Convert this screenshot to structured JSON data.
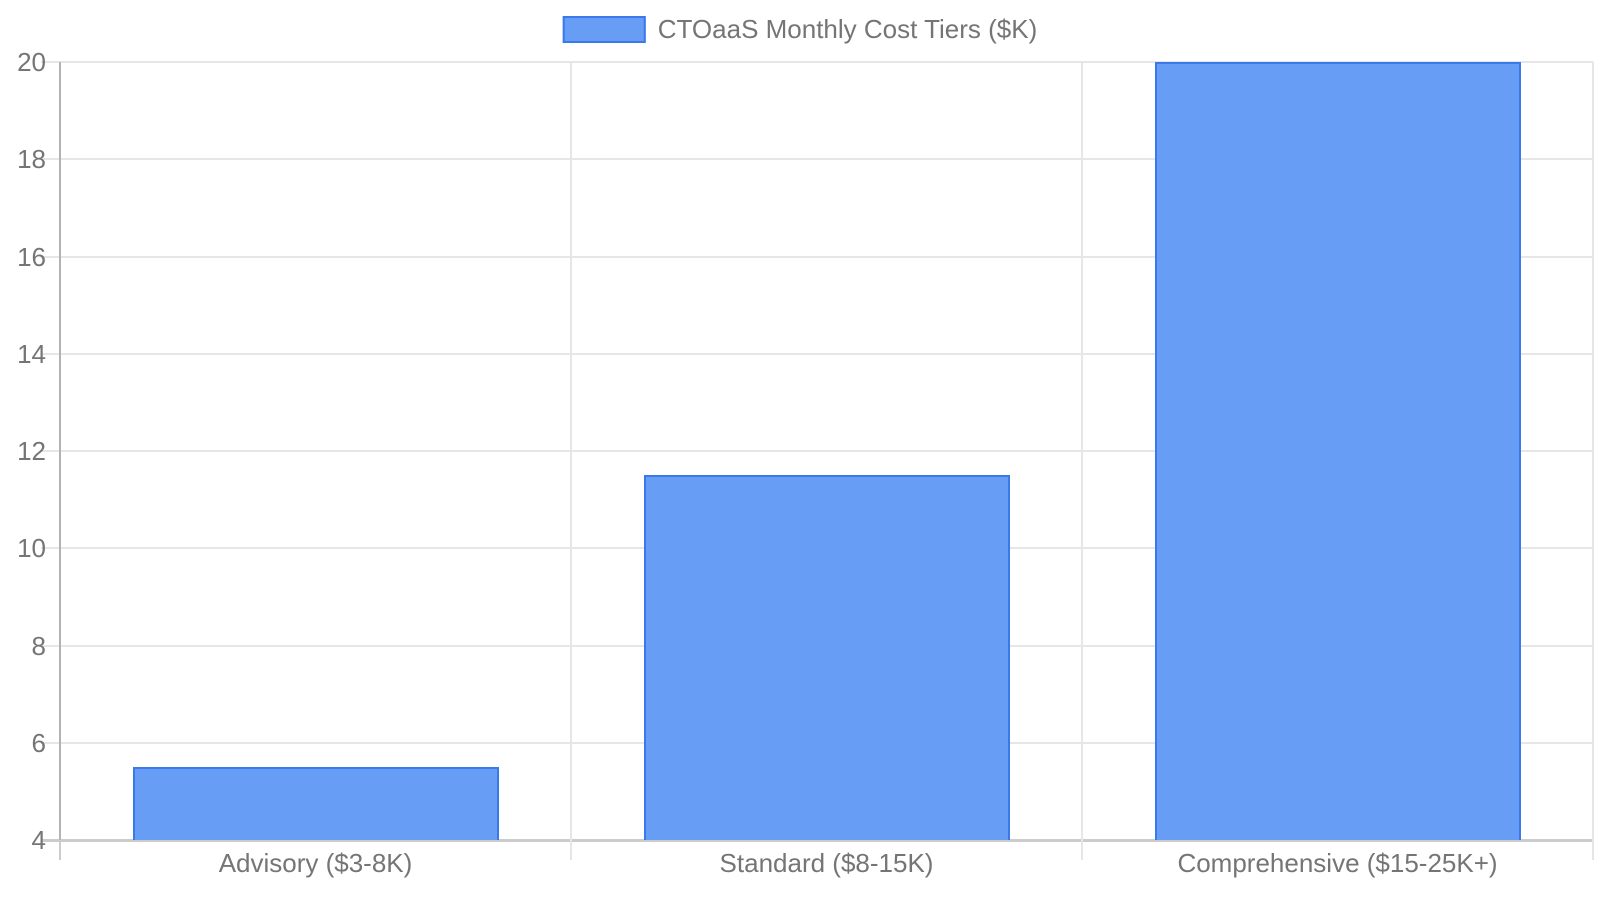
{
  "chart_data": {
    "type": "bar",
    "title": "CTOaaS Monthly Cost Tiers ($K)",
    "legend": {
      "position": "top",
      "label": "CTOaaS Monthly Cost Tiers ($K)"
    },
    "categories": [
      "Advisory ($3-8K)",
      "Standard ($8-15K)",
      "Comprehensive ($15-25K+)"
    ],
    "series": [
      {
        "name": "CTOaaS Monthly Cost Tiers ($K)",
        "values": [
          5.5,
          11.5,
          20
        ]
      }
    ],
    "xlabel": "",
    "ylabel": "",
    "ylim": [
      4,
      20
    ],
    "y_ticks": [
      "4",
      "6",
      "8",
      "10",
      "12",
      "14",
      "16",
      "18",
      "20"
    ],
    "grid": true,
    "colors": {
      "bar_fill": "#689df6",
      "bar_border": "#3b78e8",
      "axis_text": "#757575",
      "gridline": "#e6e6e6",
      "baseline": "#cccccc",
      "axis_line": "#b3b3b3"
    }
  }
}
